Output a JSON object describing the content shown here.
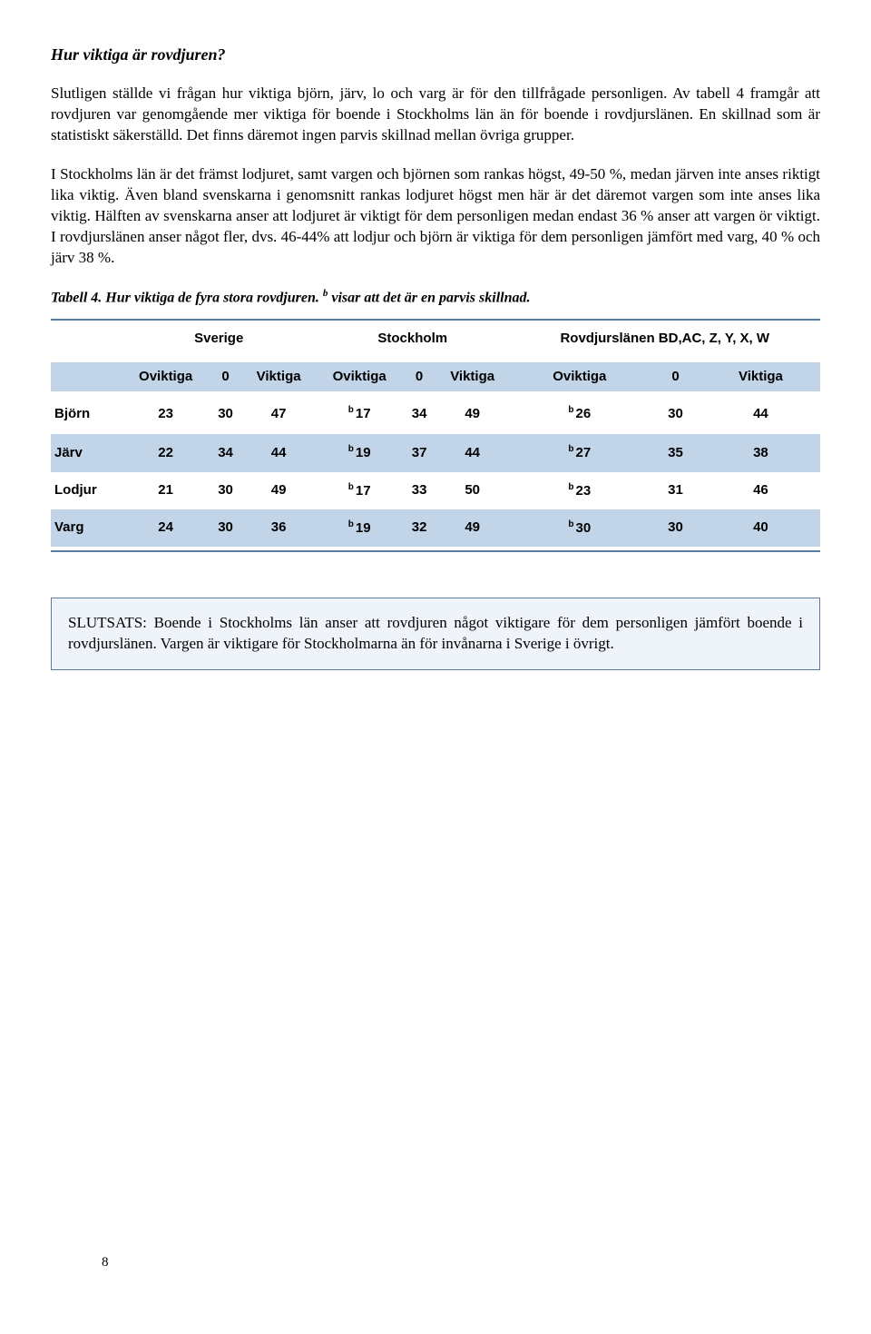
{
  "heading": "Hur viktiga är rovdjuren?",
  "para1": "Slutligen ställde vi frågan hur viktiga björn, järv, lo och varg är för den tillfrågade personligen. Av tabell 4 framgår att rovdjuren var genomgående mer viktiga för boende i Stockholms län än för boende i rovdjurslänen. En skillnad som är statistiskt säkerställd. Det finns däremot ingen parvis skillnad mellan övriga grupper.",
  "para2": "I Stockholms län är det främst lodjuret, samt vargen och björnen som rankas högst, 49-50 %, medan järven inte anses riktigt lika viktig. Även bland svenskarna i genomsnitt rankas lodjuret högst men här är det däremot vargen som inte anses lika viktig. Hälften av svenskarna anser att lodjuret är viktigt för dem personligen medan endast 36 % anser att vargen ör viktigt. I rovdjurslänen anser något fler, dvs. 46-44% att lodjur och björn är viktiga för dem personligen jämfört med varg, 40 % och järv 38 %.",
  "caption_prefix": "Tabell 4. Hur viktiga de fyra stora rovdjuren. ",
  "caption_sup": "b",
  "caption_suffix": " visar att det är en parvis skillnad.",
  "table": {
    "groups": [
      "Sverige",
      "Stockholm",
      "Rovdjurslänen BD,AC, Z, Y, X, W"
    ],
    "sub_headers": [
      "Oviktiga",
      "0",
      "Viktiga"
    ],
    "sup_marker": "b",
    "rows": [
      {
        "label": "Björn",
        "cells": [
          "23",
          "30",
          "47",
          "17",
          "34",
          "49",
          "26",
          "30",
          "44"
        ],
        "sup_cols": [
          3,
          6
        ],
        "shade": "odd"
      },
      {
        "label": "Järv",
        "cells": [
          "22",
          "34",
          "44",
          "19",
          "37",
          "44",
          "27",
          "35",
          "38"
        ],
        "sup_cols": [
          3,
          6
        ],
        "shade": "even"
      },
      {
        "label": "Lodjur",
        "cells": [
          "21",
          "30",
          "49",
          "17",
          "33",
          "50",
          "23",
          "31",
          "46"
        ],
        "sup_cols": [
          3,
          6
        ],
        "shade": "odd"
      },
      {
        "label": "Varg",
        "cells": [
          "24",
          "30",
          "36",
          "19",
          "32",
          "49",
          "30",
          "30",
          "40"
        ],
        "sup_cols": [
          3,
          6
        ],
        "shade": "even"
      }
    ],
    "colors": {
      "header_rule": "#5b7ca3",
      "band": "#c2d4e8",
      "box_bg": "#eef4fa",
      "box_border": "#5b7ca3"
    }
  },
  "conclusion": "SLUTSATS: Boende i Stockholms län anser att rovdjuren något viktigare för dem personligen jämfört boende i rovdjurslänen. Vargen är viktigare för Stockholmarna än för invånarna i Sverige i övrigt.",
  "page_number": "8"
}
